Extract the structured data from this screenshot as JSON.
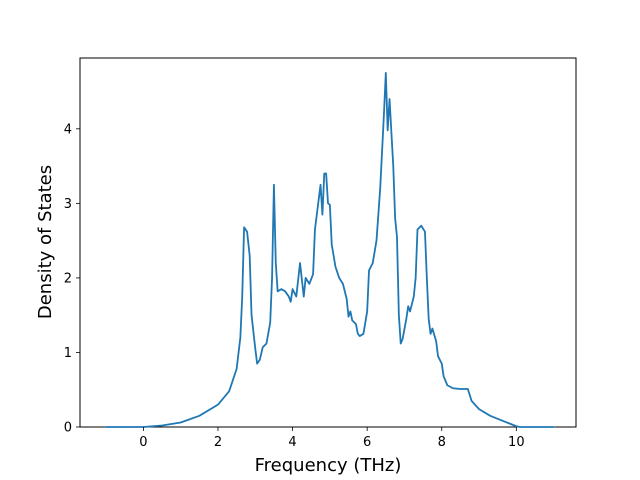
{
  "chart_data": {
    "type": "line",
    "title": "",
    "xlabel": "Frequency (THz)",
    "ylabel": "Density of States",
    "xlim": [
      -1.7,
      11.6
    ],
    "ylim": [
      0,
      4.95
    ],
    "x_ticks": [
      0,
      2,
      4,
      6,
      8,
      10
    ],
    "y_ticks": [
      0,
      1,
      2,
      3,
      4
    ],
    "grid": false,
    "legend": "none",
    "series": [
      {
        "color": "#1f77b4",
        "points": [
          [
            -1.0,
            0.0
          ],
          [
            0.0,
            0.0
          ],
          [
            0.5,
            0.02
          ],
          [
            1.0,
            0.06
          ],
          [
            1.5,
            0.15
          ],
          [
            2.0,
            0.3
          ],
          [
            2.3,
            0.48
          ],
          [
            2.5,
            0.78
          ],
          [
            2.6,
            1.2
          ],
          [
            2.65,
            1.75
          ],
          [
            2.7,
            2.68
          ],
          [
            2.78,
            2.62
          ],
          [
            2.85,
            2.3
          ],
          [
            2.9,
            1.5
          ],
          [
            3.0,
            1.05
          ],
          [
            3.05,
            0.85
          ],
          [
            3.12,
            0.9
          ],
          [
            3.2,
            1.07
          ],
          [
            3.3,
            1.12
          ],
          [
            3.4,
            1.4
          ],
          [
            3.45,
            2.0
          ],
          [
            3.5,
            3.25
          ],
          [
            3.55,
            2.2
          ],
          [
            3.6,
            1.82
          ],
          [
            3.7,
            1.85
          ],
          [
            3.8,
            1.82
          ],
          [
            3.9,
            1.75
          ],
          [
            3.95,
            1.68
          ],
          [
            4.0,
            1.85
          ],
          [
            4.1,
            1.75
          ],
          [
            4.2,
            2.2
          ],
          [
            4.3,
            1.75
          ],
          [
            4.35,
            2.0
          ],
          [
            4.45,
            1.92
          ],
          [
            4.55,
            2.05
          ],
          [
            4.6,
            2.65
          ],
          [
            4.7,
            3.05
          ],
          [
            4.75,
            3.25
          ],
          [
            4.8,
            2.85
          ],
          [
            4.85,
            3.4
          ],
          [
            4.9,
            3.4
          ],
          [
            4.95,
            3.0
          ],
          [
            5.0,
            2.98
          ],
          [
            5.05,
            2.45
          ],
          [
            5.15,
            2.15
          ],
          [
            5.25,
            2.0
          ],
          [
            5.35,
            1.92
          ],
          [
            5.45,
            1.72
          ],
          [
            5.5,
            1.48
          ],
          [
            5.55,
            1.55
          ],
          [
            5.6,
            1.43
          ],
          [
            5.7,
            1.38
          ],
          [
            5.75,
            1.25
          ],
          [
            5.8,
            1.22
          ],
          [
            5.9,
            1.25
          ],
          [
            6.0,
            1.55
          ],
          [
            6.05,
            2.1
          ],
          [
            6.15,
            2.2
          ],
          [
            6.25,
            2.5
          ],
          [
            6.35,
            3.2
          ],
          [
            6.45,
            4.2
          ],
          [
            6.5,
            4.75
          ],
          [
            6.55,
            3.98
          ],
          [
            6.6,
            4.4
          ],
          [
            6.7,
            3.5
          ],
          [
            6.75,
            2.8
          ],
          [
            6.8,
            2.55
          ],
          [
            6.85,
            1.5
          ],
          [
            6.9,
            1.12
          ],
          [
            6.95,
            1.18
          ],
          [
            7.05,
            1.45
          ],
          [
            7.1,
            1.62
          ],
          [
            7.15,
            1.55
          ],
          [
            7.25,
            1.75
          ],
          [
            7.3,
            2.0
          ],
          [
            7.35,
            2.65
          ],
          [
            7.45,
            2.7
          ],
          [
            7.55,
            2.62
          ],
          [
            7.6,
            2.0
          ],
          [
            7.65,
            1.45
          ],
          [
            7.7,
            1.25
          ],
          [
            7.75,
            1.32
          ],
          [
            7.85,
            1.15
          ],
          [
            7.9,
            0.95
          ],
          [
            8.0,
            0.85
          ],
          [
            8.05,
            0.68
          ],
          [
            8.15,
            0.56
          ],
          [
            8.3,
            0.52
          ],
          [
            8.5,
            0.51
          ],
          [
            8.7,
            0.51
          ],
          [
            8.8,
            0.35
          ],
          [
            9.0,
            0.24
          ],
          [
            9.3,
            0.15
          ],
          [
            9.6,
            0.09
          ],
          [
            9.8,
            0.05
          ],
          [
            10.0,
            0.01
          ],
          [
            10.1,
            0.0
          ],
          [
            11.0,
            0.0
          ]
        ]
      }
    ]
  }
}
